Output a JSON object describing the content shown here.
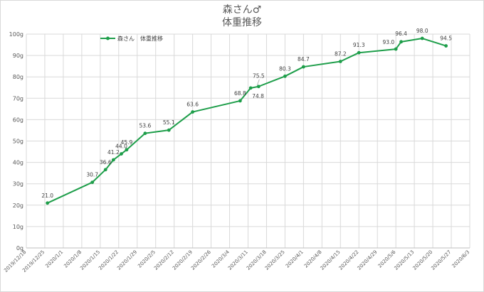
{
  "chart_data": {
    "type": "line",
    "title": [
      "森さん♂",
      "体重推移"
    ],
    "xlabel": "",
    "ylabel": "",
    "ylim": [
      0,
      100
    ],
    "y_ticks": [
      {
        "value": 0,
        "label": "0g"
      },
      {
        "value": 10,
        "label": "10g"
      },
      {
        "value": 20,
        "label": "20g"
      },
      {
        "value": 30,
        "label": "30g"
      },
      {
        "value": 40,
        "label": "40g"
      },
      {
        "value": 50,
        "label": "50g"
      },
      {
        "value": 60,
        "label": "60g"
      },
      {
        "value": 70,
        "label": "70g"
      },
      {
        "value": 80,
        "label": "80g"
      },
      {
        "value": 90,
        "label": "90g"
      },
      {
        "value": 100,
        "label": "100g"
      }
    ],
    "xlim": [
      "2019-12-18",
      "2020-06-03"
    ],
    "x_ticks": [
      {
        "date": "2019-12-18",
        "label": "2019/12/18"
      },
      {
        "date": "2019-12-25",
        "label": "2019/12/25"
      },
      {
        "date": "2020-01-01",
        "label": "2020/1/1"
      },
      {
        "date": "2020-01-08",
        "label": "2020/1/8"
      },
      {
        "date": "2020-01-15",
        "label": "2020/1/15"
      },
      {
        "date": "2020-01-22",
        "label": "2020/1/22"
      },
      {
        "date": "2020-01-29",
        "label": "2020/1/29"
      },
      {
        "date": "2020-02-05",
        "label": "2020/2/5"
      },
      {
        "date": "2020-02-12",
        "label": "2020/2/12"
      },
      {
        "date": "2020-02-19",
        "label": "2020/2/19"
      },
      {
        "date": "2020-02-26",
        "label": "2020/2/26"
      },
      {
        "date": "2020-03-04",
        "label": "2020/3/4"
      },
      {
        "date": "2020-03-11",
        "label": "2020/3/11"
      },
      {
        "date": "2020-03-18",
        "label": "2020/3/18"
      },
      {
        "date": "2020-03-25",
        "label": "2020/3/25"
      },
      {
        "date": "2020-04-01",
        "label": "2020/4/1"
      },
      {
        "date": "2020-04-08",
        "label": "2020/4/8"
      },
      {
        "date": "2020-04-15",
        "label": "2020/4/15"
      },
      {
        "date": "2020-04-22",
        "label": "2020/4/22"
      },
      {
        "date": "2020-04-29",
        "label": "2020/4/29"
      },
      {
        "date": "2020-05-06",
        "label": "2020/5/6"
      },
      {
        "date": "2020-05-13",
        "label": "2020/5/13"
      },
      {
        "date": "2020-05-20",
        "label": "2020/5/20"
      },
      {
        "date": "2020-05-27",
        "label": "2020/5/27"
      },
      {
        "date": "2020-06-03",
        "label": "2020/6/3"
      }
    ],
    "grid": "vertical-and-horizontal",
    "legend": "top-left",
    "series": [
      {
        "name": "森さん　体重推移",
        "color": "#1e9e4a",
        "points": [
          {
            "x": "2019-12-26",
            "y": 21.0,
            "label": "21.0"
          },
          {
            "x": "2020-01-12",
            "y": 30.7,
            "label": "30.7"
          },
          {
            "x": "2020-01-17",
            "y": 36.6,
            "label": "36.6"
          },
          {
            "x": "2020-01-20",
            "y": 41.2,
            "label": "41.2"
          },
          {
            "x": "2020-01-23",
            "y": 44.0,
            "label": "44.0"
          },
          {
            "x": "2020-01-25",
            "y": 45.9,
            "label": "45.9"
          },
          {
            "x": "2020-02-01",
            "y": 53.6,
            "label": "53.6"
          },
          {
            "x": "2020-02-10",
            "y": 55.1,
            "label": "55.1"
          },
          {
            "x": "2020-02-19",
            "y": 63.6,
            "label": "63.6"
          },
          {
            "x": "2020-03-08",
            "y": 68.8,
            "label": "68.8"
          },
          {
            "x": "2020-03-12",
            "y": 74.8,
            "label": "74.8"
          },
          {
            "x": "2020-03-15",
            "y": 75.5,
            "label": "75.5"
          },
          {
            "x": "2020-03-25",
            "y": 80.3,
            "label": "80.3"
          },
          {
            "x": "2020-04-01",
            "y": 84.7,
            "label": "84.7"
          },
          {
            "x": "2020-04-15",
            "y": 87.2,
            "label": "87.2"
          },
          {
            "x": "2020-04-22",
            "y": 91.3,
            "label": "91.3"
          },
          {
            "x": "2020-05-06",
            "y": 93.0,
            "label": "93.0"
          },
          {
            "x": "2020-05-08",
            "y": 96.4,
            "label": "96.4"
          },
          {
            "x": "2020-05-16",
            "y": 98.0,
            "label": "98.0"
          },
          {
            "x": "2020-05-25",
            "y": 94.5,
            "label": "94.5"
          }
        ]
      }
    ]
  }
}
